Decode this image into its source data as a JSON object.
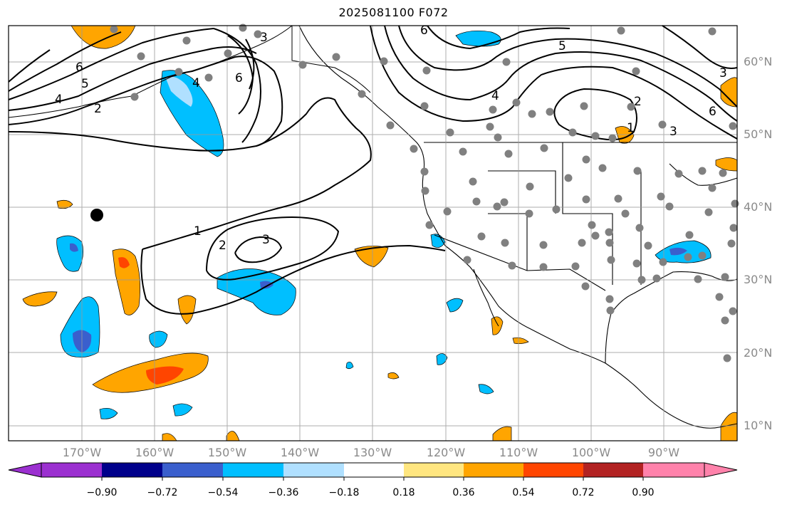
{
  "title": "2025081100 F072",
  "map": {
    "region": "North Pacific / North America",
    "lat_labels": [
      "60°N",
      "50°N",
      "40°N",
      "30°N",
      "20°N",
      "10°N"
    ],
    "lon_labels": [
      "170°W",
      "160°W",
      "150°W",
      "140°W",
      "130°W",
      "120°W",
      "110°W",
      "100°W",
      "90°W"
    ],
    "contour_labels": [
      "6",
      "5",
      "4",
      "3",
      "2",
      "1",
      "6",
      "5",
      "4",
      "3",
      "2",
      "1",
      "2",
      "3",
      "4",
      "6",
      "3",
      "6"
    ],
    "grid_lines": true,
    "station_marker_color": "#808080",
    "special_marker_color": "#000000"
  },
  "colorbar": {
    "ticks": [
      "−0.90",
      "−0.72",
      "−0.54",
      "−0.36",
      "−0.18",
      "0.18",
      "0.36",
      "0.54",
      "0.72",
      "0.90"
    ],
    "colors": [
      "#9b30d0",
      "#00008b",
      "#3a5fcd",
      "#00bfff",
      "#b0e0ff",
      "#ffffff",
      "#ffe680",
      "#ffa500",
      "#ff4500",
      "#b22222",
      "#ff82ab"
    ]
  }
}
